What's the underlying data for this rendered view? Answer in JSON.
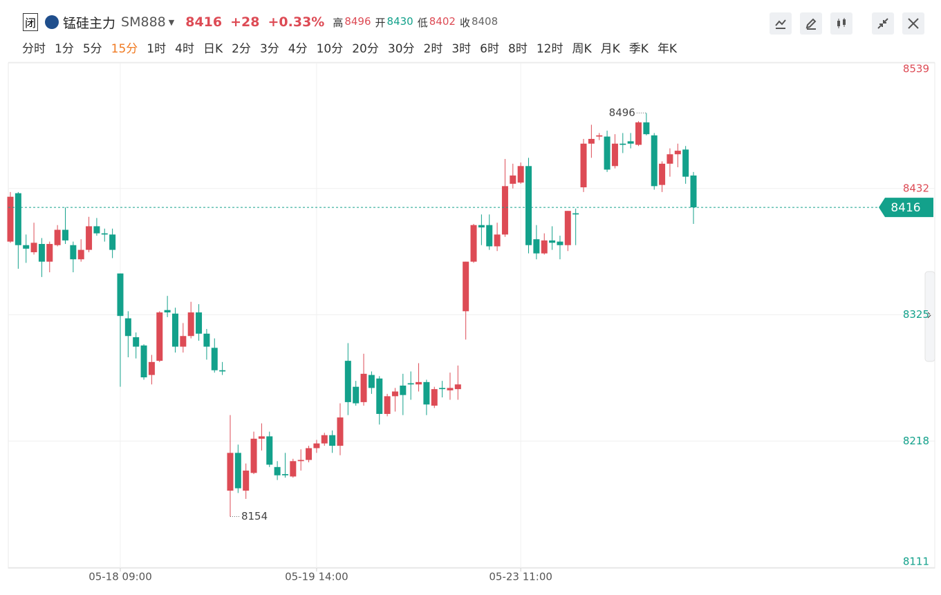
{
  "header": {
    "status": "闭",
    "name": "锰硅主力",
    "code": "SM888",
    "price": "8416",
    "change": "+28",
    "percent": "+0.33%",
    "stats": [
      {
        "label": "高",
        "value": "8496",
        "color": "#dd4b55"
      },
      {
        "label": "开",
        "value": "8430",
        "color": "#13a18b"
      },
      {
        "label": "低",
        "value": "8402",
        "color": "#dd4b55"
      },
      {
        "label": "收",
        "value": "8408",
        "color": "#666"
      }
    ]
  },
  "periods": [
    {
      "label": "分时"
    },
    {
      "label": "1分"
    },
    {
      "label": "5分"
    },
    {
      "label": "15分",
      "active": true
    },
    {
      "label": "1时"
    },
    {
      "label": "4时"
    },
    {
      "label": "日K"
    },
    {
      "label": "2分"
    },
    {
      "label": "3分"
    },
    {
      "label": "4分"
    },
    {
      "label": "10分"
    },
    {
      "label": "20分"
    },
    {
      "label": "30分"
    },
    {
      "label": "2时"
    },
    {
      "label": "3时"
    },
    {
      "label": "6时"
    },
    {
      "label": "8时"
    },
    {
      "label": "12时"
    },
    {
      "label": "周K"
    },
    {
      "label": "月K"
    },
    {
      "label": "季K"
    },
    {
      "label": "年K"
    }
  ],
  "chart_data": {
    "type": "candlestick",
    "up_color": "#dd4b55",
    "down_color": "#13a18b",
    "categories": [
      null,
      null,
      null,
      null,
      null,
      null,
      null,
      null,
      null,
      null,
      null,
      null,
      null,
      null,
      "05-18 09:00",
      null,
      null,
      null,
      null,
      null,
      null,
      null,
      null,
      null,
      null,
      null,
      null,
      null,
      null,
      null,
      null,
      null,
      null,
      null,
      null,
      null,
      null,
      null,
      null,
      "05-19 14:00",
      null,
      null,
      null,
      null,
      null,
      null,
      null,
      null,
      null,
      null,
      null,
      null,
      null,
      null,
      null,
      null,
      null,
      null,
      null,
      null,
      null,
      null,
      null,
      null,
      null,
      "05-23 11:00",
      null,
      null,
      null,
      null,
      null,
      null,
      null,
      null,
      null,
      null,
      null,
      null,
      null,
      null,
      null,
      null,
      null,
      null,
      null,
      null,
      null,
      null
    ],
    "open": [
      8387,
      8428,
      8384,
      8378,
      8385,
      8370,
      8384,
      8397,
      8384,
      8372,
      8380,
      8400,
      8394,
      8393,
      8360,
      8322,
      8306,
      8299,
      8274,
      8286,
      8329,
      8326,
      8298,
      8307,
      8327,
      8309,
      8297,
      8278,
      8176,
      8208,
      8176,
      8191,
      8220,
      8222,
      8196,
      8190,
      8188,
      8201,
      8202,
      8212,
      8216,
      8223,
      8214,
      8286,
      8264,
      8251,
      8274,
      8271,
      8241,
      8256,
      8265,
      8267,
      8266,
      8268,
      8248,
      8263,
      8261,
      8262,
      8328,
      8370,
      8401,
      8401,
      8383,
      8393,
      8436,
      8437,
      8451,
      8389,
      8377,
      8388,
      8387,
      8384,
      8411,
      8433,
      8470,
      8476,
      8476,
      8451,
      8470,
      8472,
      8469,
      8488,
      8477,
      8435,
      8453,
      8461,
      8465,
      8443
    ],
    "high": [
      8429,
      8429,
      8393,
      8403,
      8390,
      8387,
      8401,
      8416,
      8387,
      8389,
      8408,
      8407,
      8398,
      8398,
      8360,
      8328,
      8310,
      8300,
      8291,
      8328,
      8341,
      8331,
      8318,
      8336,
      8334,
      8313,
      8305,
      8285,
      8240,
      8215,
      8199,
      8226,
      8233,
      8226,
      8201,
      8208,
      8203,
      8211,
      8214,
      8219,
      8225,
      8227,
      8250,
      8301,
      8269,
      8292,
      8277,
      8273,
      8258,
      8263,
      8275,
      8277,
      8284,
      8270,
      8264,
      8269,
      8276,
      8282,
      8370,
      8402,
      8410,
      8410,
      8403,
      8457,
      8453,
      8454,
      8458,
      8401,
      8394,
      8400,
      8392,
      8413,
      8415,
      8474,
      8486,
      8479,
      8481,
      8478,
      8479,
      8479,
      8489,
      8496,
      8479,
      8455,
      8466,
      8470,
      8468,
      8446
    ],
    "low": [
      8386,
      8364,
      8369,
      8376,
      8357,
      8361,
      8383,
      8385,
      8361,
      8370,
      8378,
      8392,
      8387,
      8373,
      8264,
      8289,
      8288,
      8270,
      8266,
      8285,
      8323,
      8293,
      8293,
      8305,
      8303,
      8287,
      8276,
      8274,
      8154,
      8174,
      8169,
      8190,
      8210,
      8196,
      8185,
      8187,
      8187,
      8193,
      8200,
      8208,
      8214,
      8208,
      8206,
      8240,
      8248,
      8248,
      8258,
      8232,
      8239,
      8243,
      8240,
      8253,
      8260,
      8240,
      8246,
      8255,
      8253,
      8253,
      8304,
      8369,
      8384,
      8380,
      8379,
      8391,
      8432,
      8436,
      8377,
      8372,
      8376,
      8380,
      8372,
      8379,
      8384,
      8429,
      8458,
      8473,
      8446,
      8449,
      8462,
      8466,
      8468,
      8477,
      8431,
      8429,
      8442,
      8450,
      8436,
      8402
    ],
    "close": [
      8425,
      8384,
      8381,
      8386,
      8370,
      8385,
      8397,
      8388,
      8372,
      8380,
      8400,
      8394,
      8393,
      8380,
      8324,
      8307,
      8298,
      8272,
      8285,
      8327,
      8327,
      8298,
      8307,
      8327,
      8309,
      8298,
      8278,
      8277,
      8208,
      8178,
      8193,
      8220,
      8222,
      8198,
      8189,
      8189,
      8201,
      8202,
      8212,
      8216,
      8223,
      8214,
      8238,
      8251,
      8250,
      8275,
      8263,
      8241,
      8256,
      8260,
      8257,
      8266,
      8268,
      8249,
      8262,
      8262,
      8263,
      8266,
      8370,
      8401,
      8399,
      8383,
      8393,
      8434,
      8443,
      8451,
      8384,
      8377,
      8388,
      8386,
      8384,
      8413,
      8410,
      8470,
      8474,
      8477,
      8448,
      8470,
      8469,
      8470,
      8488,
      8478,
      8434,
      8453,
      8461,
      8464,
      8442,
      8416
    ],
    "ylim": [
      8111,
      8539
    ],
    "yticks": [
      8111,
      8218,
      8325,
      8432,
      8539
    ],
    "threshold": 8408,
    "grid": true,
    "max_index": 81,
    "min_index": 28
  }
}
